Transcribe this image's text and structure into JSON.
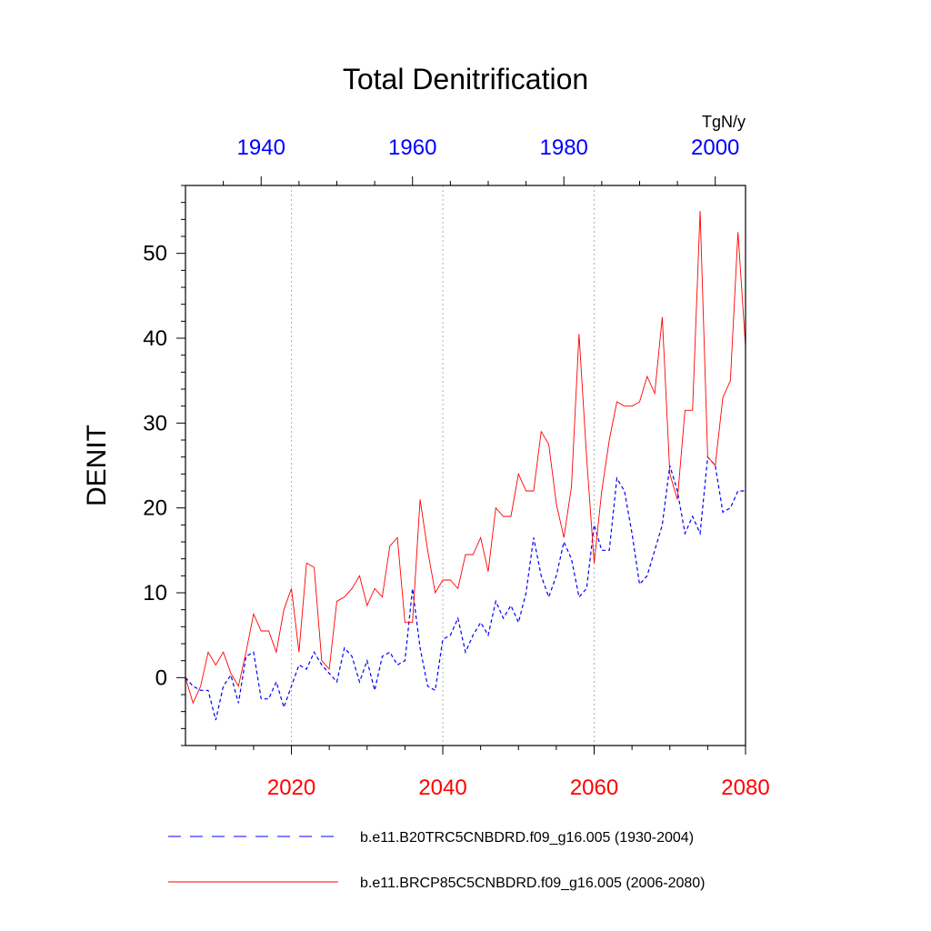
{
  "chart_data": {
    "type": "line",
    "title": "Total Denitrification",
    "units": "TgN/y",
    "ylabel": "DENIT",
    "ylim": [
      -8,
      58
    ],
    "y_ticks": [
      0,
      10,
      20,
      30,
      40,
      50
    ],
    "y_tick_labels": [
      "0",
      "10",
      "20",
      "30",
      "40",
      "50"
    ],
    "x_bottom": {
      "range": [
        2006,
        2080
      ],
      "ticks": [
        2020,
        2040,
        2060,
        2080
      ],
      "tick_labels": [
        "2020",
        "2040",
        "2060",
        "2080"
      ],
      "color": "#ff0000"
    },
    "x_top": {
      "range": [
        1930,
        2004
      ],
      "ticks": [
        1940,
        1960,
        1980,
        2000
      ],
      "tick_labels": [
        "1940",
        "1960",
        "1980",
        "2000"
      ],
      "color": "#0000ff"
    },
    "gridlines_at_bottom_x": [
      2020,
      2040,
      2060
    ],
    "series": [
      {
        "name": "b.e11.B20TRC5CNBDRD.f09_g16.005 (1930-2004)",
        "color": "#0000ff",
        "style": "dashed",
        "axis": "top",
        "x_start": 1930,
        "values": [
          0,
          -1,
          -1.5,
          -1.5,
          -5,
          -1,
          0.3,
          -3,
          2.5,
          3,
          -2.5,
          -2.5,
          -0.5,
          -3.5,
          -1,
          1.5,
          1,
          3,
          1.5,
          0.5,
          -0.5,
          3.5,
          2.5,
          -0.5,
          2,
          -1.5,
          2.5,
          3,
          1.5,
          2,
          10.5,
          3.5,
          -1,
          -1.5,
          4.5,
          5,
          7,
          3,
          5,
          6.5,
          5,
          9,
          7,
          8.5,
          6.5,
          10,
          16.5,
          12,
          9.5,
          12,
          16,
          14,
          9.5,
          10.5,
          18,
          15,
          15,
          23.5,
          22,
          17,
          11,
          12,
          15,
          18,
          25,
          22,
          17,
          19,
          17,
          26,
          25,
          19.5,
          20,
          22,
          22
        ]
      },
      {
        "name": "b.e11.BRCP85C5CNBDRD.f09_g16.005 (2006-2080)",
        "color": "#ff0000",
        "style": "solid",
        "axis": "bottom",
        "x_start": 2006,
        "values": [
          0,
          -3,
          -1,
          3,
          1.5,
          3,
          0.5,
          -1,
          3,
          7.5,
          5.5,
          5.5,
          3,
          8,
          10.5,
          3,
          13.5,
          13,
          2,
          1,
          9,
          9.5,
          10.5,
          12,
          8.5,
          10.5,
          9.5,
          15.5,
          16.5,
          6.5,
          6.5,
          21,
          15,
          10,
          11.5,
          11.5,
          10.5,
          14.5,
          14.5,
          16.5,
          12.5,
          20,
          19,
          19,
          24,
          22,
          22,
          29,
          27.5,
          20.5,
          16.5,
          22.5,
          40.5,
          26,
          13.5,
          22,
          28,
          32.5,
          32,
          32,
          32.5,
          35.5,
          33.5,
          42.5,
          24,
          21,
          31.5,
          31.5,
          55,
          26,
          25,
          33,
          35,
          52.5,
          39
        ]
      }
    ]
  },
  "legend": {
    "items": [
      {
        "label": "b.e11.B20TRC5CNBDRD.f09_g16.005 (1930-2004)"
      },
      {
        "label": "b.e11.BRCP85C5CNBDRD.f09_g16.005 (2006-2080)"
      }
    ]
  }
}
